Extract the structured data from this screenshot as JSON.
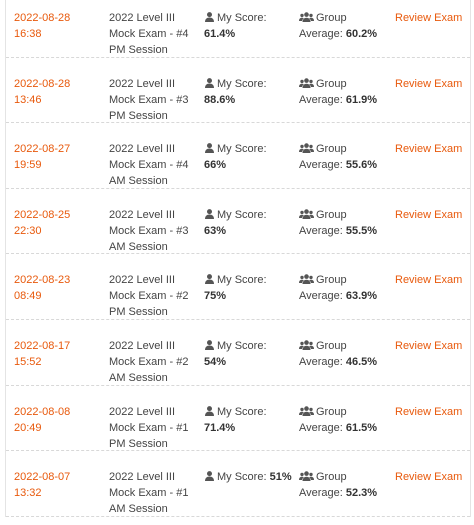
{
  "labels": {
    "my_score": "My Score:",
    "group": "Group",
    "average": "Average:",
    "review": "Review Exam"
  },
  "rows": [
    {
      "date": "2022-08-28 16:38",
      "exam": "2022 Level III Mock Exam - #4 PM Session",
      "score": "61.4%",
      "average": "60.2%"
    },
    {
      "date": "2022-08-28 13:46",
      "exam": "2022 Level III Mock Exam - #3 PM Session",
      "score": "88.6%",
      "average": "61.9%"
    },
    {
      "date": "2022-08-27 19:59",
      "exam": "2022 Level III Mock Exam - #4 AM Session",
      "score": "66%",
      "average": "55.6%"
    },
    {
      "date": "2022-08-25 22:30",
      "exam": "2022 Level III Mock Exam - #3 AM Session",
      "score": "63%",
      "average": "55.5%"
    },
    {
      "date": "2022-08-23 08:49",
      "exam": "2022 Level III Mock Exam - #2 PM Session",
      "score": "75%",
      "average": "63.9%"
    },
    {
      "date": "2022-08-17 15:52",
      "exam": "2022 Level III Mock Exam - #2 AM Session",
      "score": "54%",
      "average": "46.5%"
    },
    {
      "date": "2022-08-08 20:49",
      "exam": "2022 Level III Mock Exam - #1 PM Session",
      "score": "71.4%",
      "average": "61.5%"
    },
    {
      "date": "2022-08-07 13:32",
      "exam": "2022 Level III Mock Exam - #1 AM Session",
      "score": "51%",
      "average": "52.3%"
    }
  ]
}
